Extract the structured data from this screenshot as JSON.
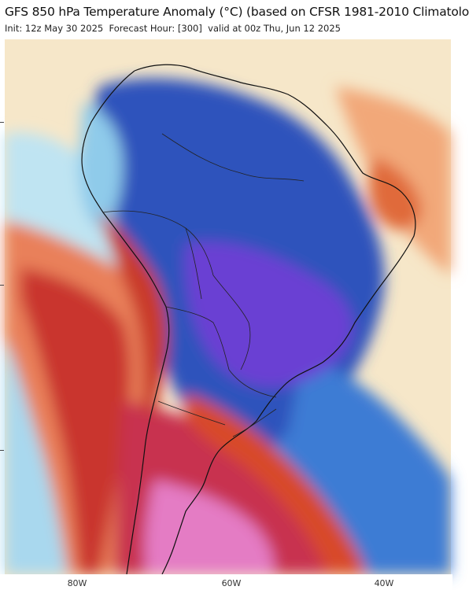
{
  "header": {
    "title": "GFS 850 hPa Temperature Anomaly (°C) (based on CFSR 1981-2010 Climatolo",
    "init": "Init: 12z May 30 2025",
    "forecast_hour": "Forecast Hour: [300]",
    "valid": "valid at 00z Thu, Jun 12 2025"
  },
  "map": {
    "region": "South America",
    "variable": "850 hPa temperature anomaly",
    "colors": {
      "strong_cold": "#6a3fd1",
      "cold": "#2f4fb8",
      "mild_cold": "#3f7fd6",
      "slight_cold": "#9fd6ef",
      "neutral": "#f6e7c9",
      "warm": "#f0a070",
      "hot": "#d84a2a",
      "very_hot": "#b8263a",
      "extreme_hot": "#e67ac0"
    }
  },
  "axis": {
    "lon_labels": [
      "80W",
      "60W",
      "40W"
    ]
  }
}
